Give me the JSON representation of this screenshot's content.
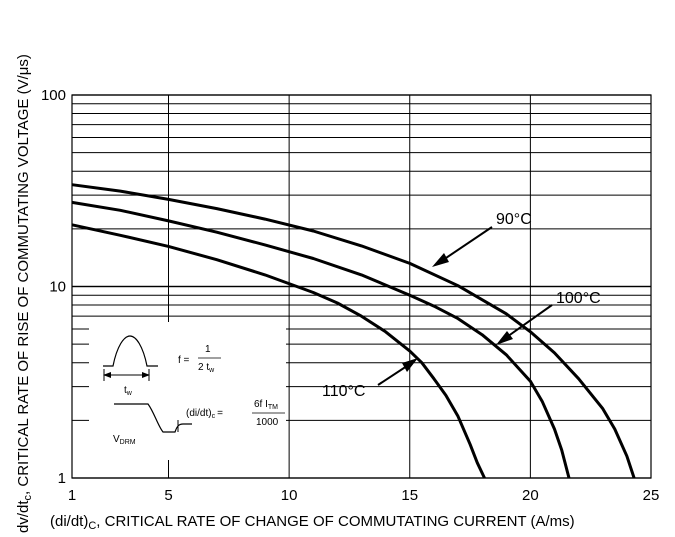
{
  "chart_data": {
    "type": "line",
    "title": "",
    "xlabel_parts": {
      "pre": "(di/dt)",
      "sub": "C",
      "post": ", CRITICAL RATE OF CHANGE OF COMMUTATING CURRENT (A/ms)"
    },
    "ylabel_parts": {
      "pre": "dv/dt",
      "sub": "c",
      "post": ", CRITICAL RATE OF RISE OF COMMUTATING VOLTAGE (V/μs)"
    },
    "x_scale": "linear",
    "y_scale": "log",
    "xlim": [
      1,
      25
    ],
    "ylim": [
      1,
      100
    ],
    "x_ticks": [
      "1",
      "5",
      "10",
      "15",
      "20",
      "25"
    ],
    "y_ticks": [
      "1",
      "10",
      "100"
    ],
    "grid": true,
    "series": [
      {
        "name": "90°C",
        "x": [
          1,
          3,
          5,
          7,
          9,
          11,
          13,
          15,
          17,
          19,
          20,
          21,
          22,
          23,
          23.5,
          24,
          24.3
        ],
        "y": [
          34,
          31.5,
          28.5,
          25.5,
          22.5,
          19.5,
          16.3,
          13.2,
          10.1,
          7.2,
          5.8,
          4.5,
          3.3,
          2.3,
          1.8,
          1.3,
          1
        ]
      },
      {
        "name": "100°C",
        "x": [
          1,
          3,
          5,
          7,
          9,
          11,
          13,
          15,
          16,
          17,
          18,
          19,
          20,
          20.5,
          21,
          21.3,
          21.6
        ],
        "y": [
          27.5,
          25,
          22,
          19.2,
          16.5,
          14,
          11.5,
          9,
          7.9,
          6.8,
          5.6,
          4.4,
          3.2,
          2.5,
          1.8,
          1.4,
          1
        ]
      },
      {
        "name": "110°C",
        "x": [
          1,
          3,
          5,
          7,
          9,
          11,
          12,
          13,
          14,
          15,
          15.5,
          16,
          16.5,
          17,
          17.5,
          17.8,
          18.1
        ],
        "y": [
          21,
          18.5,
          16.2,
          13.8,
          11.5,
          9.3,
          8.2,
          7,
          5.8,
          4.6,
          4.0,
          3.3,
          2.7,
          2.1,
          1.5,
          1.2,
          1
        ]
      }
    ],
    "inset": {
      "pulse_label": "t",
      "pulse_label_sub": "w",
      "freq_lhs": "f =",
      "freq_num": "1",
      "freq_den_pre": "2 t",
      "freq_den_sub": "w",
      "vdrm_pre": "V",
      "vdrm_sub": "DRM",
      "didt_pre": "(di/dt)",
      "didt_sub": "c",
      "didt_eq": "=",
      "didt_num_pre": "6f I",
      "didt_num_sub": "TM",
      "didt_den": "1000"
    }
  }
}
